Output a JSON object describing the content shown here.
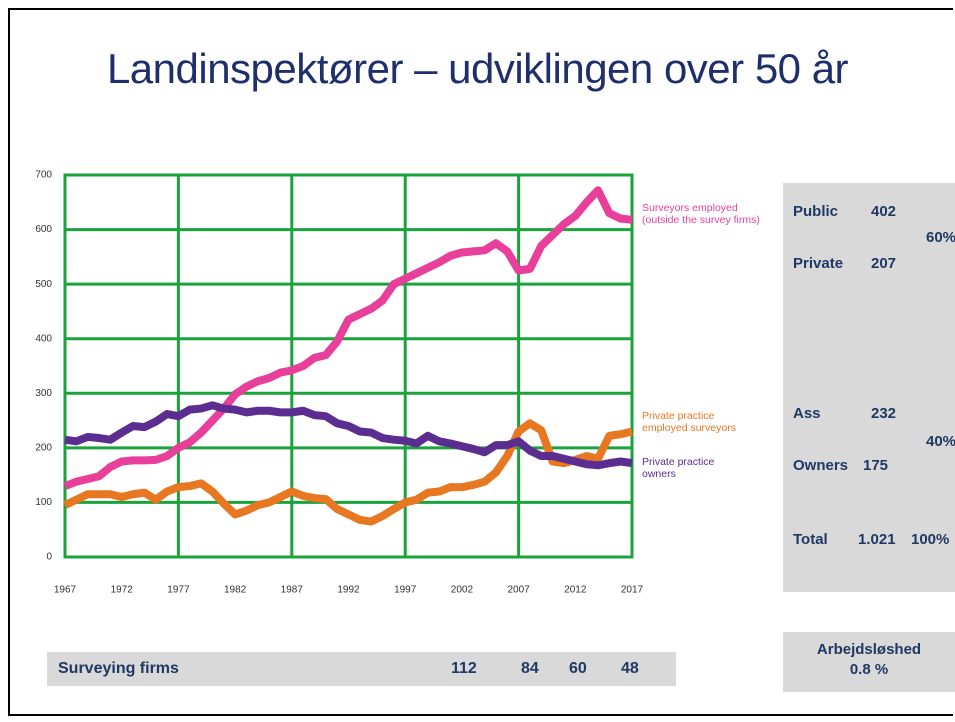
{
  "title": "Landinspektører – udviklingen over 50 år",
  "chart_data": {
    "type": "line",
    "x": [
      1967,
      1968,
      1969,
      1970,
      1971,
      1972,
      1973,
      1974,
      1975,
      1976,
      1977,
      1978,
      1979,
      1980,
      1981,
      1982,
      1983,
      1984,
      1985,
      1986,
      1987,
      1988,
      1989,
      1990,
      1991,
      1992,
      1993,
      1994,
      1995,
      1996,
      1997,
      1998,
      1999,
      2000,
      2001,
      2002,
      2003,
      2004,
      2005,
      2006,
      2007,
      2008,
      2009,
      2010,
      2011,
      2012,
      2013,
      2014,
      2015,
      2016,
      2017
    ],
    "series": [
      {
        "name": "Surveyors employed\n(outside the survey firms)",
        "color": "#e8409a",
        "values": [
          130,
          138,
          143,
          148,
          165,
          175,
          177,
          177,
          178,
          185,
          200,
          210,
          228,
          250,
          272,
          298,
          312,
          322,
          328,
          338,
          342,
          350,
          365,
          370,
          395,
          435,
          445,
          455,
          470,
          500,
          510,
          520,
          530,
          540,
          552,
          558,
          560,
          562,
          575,
          560,
          525,
          528,
          570,
          590,
          610,
          625,
          650,
          672,
          630,
          620,
          618
        ]
      },
      {
        "name": "Private practice\nemployed surveyors",
        "color": "#e87722",
        "values": [
          95,
          105,
          115,
          115,
          115,
          110,
          115,
          118,
          105,
          120,
          128,
          130,
          135,
          120,
          98,
          78,
          85,
          95,
          100,
          110,
          120,
          112,
          108,
          106,
          88,
          78,
          68,
          65,
          75,
          88,
          100,
          105,
          118,
          120,
          128,
          128,
          132,
          138,
          155,
          185,
          230,
          245,
          232,
          175,
          172,
          178,
          185,
          180,
          222,
          225,
          230
        ]
      },
      {
        "name": "Private practice\nowners",
        "color": "#5b2d91",
        "values": [
          215,
          212,
          220,
          218,
          215,
          228,
          240,
          238,
          248,
          262,
          258,
          270,
          272,
          278,
          272,
          270,
          265,
          268,
          268,
          265,
          265,
          268,
          260,
          258,
          245,
          240,
          230,
          228,
          218,
          215,
          213,
          208,
          222,
          212,
          208,
          203,
          198,
          192,
          205,
          205,
          212,
          195,
          185,
          185,
          180,
          175,
          170,
          168,
          172,
          175,
          172
        ]
      }
    ],
    "xlim": [
      1967,
      2017
    ],
    "xticks": [
      1967,
      1972,
      1977,
      1982,
      1987,
      1992,
      1997,
      2002,
      2007,
      2012,
      2017
    ],
    "ylim": [
      0,
      700
    ],
    "yticks": [
      0,
      100,
      200,
      300,
      400,
      500,
      600,
      700
    ],
    "grid": true,
    "grid_color": "#1aa33a"
  },
  "panel": {
    "rows": [
      {
        "label": "Public",
        "value": "402",
        "share": "60%"
      },
      {
        "label": "Private",
        "value": "207"
      },
      {
        "label": "Ass",
        "value": "232",
        "share": "40%"
      },
      {
        "label": "Owners",
        "value": "175"
      },
      {
        "label": "Total",
        "value": "1.021",
        "share": "100%"
      }
    ]
  },
  "firms": {
    "label": "Surveying firms",
    "values": [
      112,
      84,
      60,
      48
    ]
  },
  "unemployment": {
    "label": "Arbejdsløshed",
    "value": "0.8 %"
  }
}
